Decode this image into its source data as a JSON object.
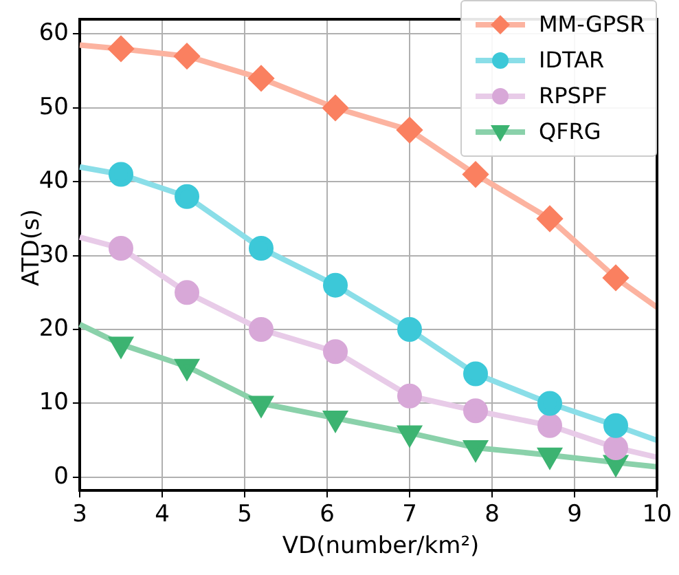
{
  "chart_data": {
    "type": "line",
    "xlabel": "VD(number/km²)",
    "ylabel": "ATD(s)",
    "x": [
      3,
      3.5,
      4.3,
      5.2,
      6.1,
      7,
      7.8,
      8.7,
      9.5,
      10
    ],
    "series": [
      {
        "name": "MM-GPSR",
        "color": "#fa8060",
        "marker": "diamond",
        "values": [
          58.5,
          58,
          57,
          54,
          50,
          47,
          41,
          35,
          27,
          23
        ]
      },
      {
        "name": "IDTAR",
        "color": "#3cc8d8",
        "marker": "circle",
        "values": [
          42,
          41,
          38,
          31,
          26,
          20,
          14,
          10,
          7,
          5
        ]
      },
      {
        "name": "RPSPF",
        "color": "#d8a8d8",
        "marker": "circle",
        "values": [
          32.5,
          31,
          25,
          20,
          17,
          11,
          9,
          7,
          4,
          2.7
        ]
      },
      {
        "name": "QFRG",
        "color": "#3cb371",
        "marker": "triangle",
        "values": [
          20.7,
          18,
          15,
          10,
          8,
          6,
          4,
          3,
          2,
          1.4
        ]
      }
    ],
    "xlim": [
      3,
      10
    ],
    "xticks": [
      3,
      4,
      5,
      6,
      7,
      8,
      9,
      10
    ],
    "ylim": [
      -1.8,
      62
    ],
    "yticks": [
      0,
      10,
      20,
      30,
      40,
      50,
      60
    ],
    "grid": true,
    "legend": "top right",
    "line_style": "solid"
  }
}
